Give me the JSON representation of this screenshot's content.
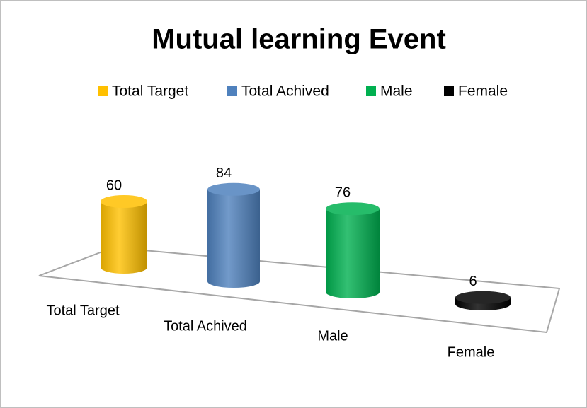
{
  "chart_data": {
    "type": "bar3d",
    "title": "Mutual learning Event",
    "categories": [
      "Total Target",
      "Total Achived",
      "Male",
      "Female"
    ],
    "values": [
      60,
      84,
      76,
      6
    ],
    "colors": [
      "#ffc000",
      "#4f81bd",
      "#00b050",
      "#000000"
    ],
    "legend": "top"
  }
}
